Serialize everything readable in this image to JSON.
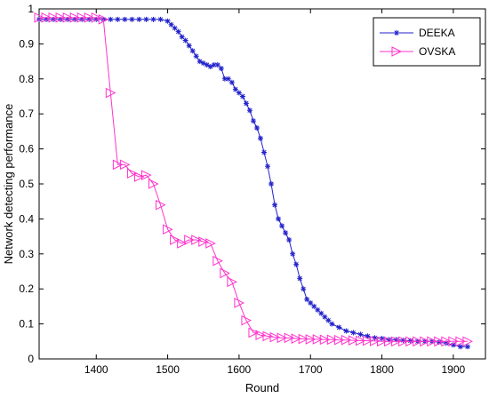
{
  "chart_data": {
    "type": "line",
    "xlabel": "Round",
    "ylabel": "Network detecting performance",
    "xlim": [
      1320,
      1945
    ],
    "ylim": [
      0,
      1
    ],
    "xticks": [
      "1400",
      "1500",
      "1600",
      "1700",
      "1800",
      "1900"
    ],
    "yticks": [
      "0",
      "0.1",
      "0.2",
      "0.3",
      "0.4",
      "0.5",
      "0.6",
      "0.7",
      "0.8",
      "0.9",
      "1"
    ],
    "legend_position": "top-right",
    "series": [
      {
        "name": "DEEKA",
        "color": "#2222cc",
        "marker": "star",
        "x": [
          1320,
          1330,
          1340,
          1350,
          1360,
          1370,
          1380,
          1390,
          1400,
          1410,
          1420,
          1430,
          1440,
          1450,
          1460,
          1470,
          1480,
          1490,
          1500,
          1505,
          1510,
          1515,
          1520,
          1525,
          1530,
          1535,
          1540,
          1545,
          1550,
          1555,
          1560,
          1565,
          1570,
          1575,
          1580,
          1585,
          1590,
          1595,
          1600,
          1605,
          1610,
          1615,
          1620,
          1625,
          1630,
          1635,
          1640,
          1645,
          1650,
          1655,
          1660,
          1665,
          1670,
          1675,
          1680,
          1685,
          1690,
          1695,
          1700,
          1705,
          1710,
          1715,
          1720,
          1725,
          1730,
          1740,
          1750,
          1760,
          1770,
          1780,
          1790,
          1800,
          1810,
          1820,
          1830,
          1840,
          1850,
          1860,
          1870,
          1880,
          1890,
          1900,
          1910,
          1920
        ],
        "y": [
          0.97,
          0.97,
          0.97,
          0.97,
          0.97,
          0.97,
          0.97,
          0.97,
          0.97,
          0.97,
          0.97,
          0.97,
          0.97,
          0.97,
          0.97,
          0.97,
          0.97,
          0.97,
          0.965,
          0.955,
          0.945,
          0.935,
          0.92,
          0.91,
          0.895,
          0.88,
          0.865,
          0.85,
          0.845,
          0.84,
          0.835,
          0.84,
          0.84,
          0.83,
          0.8,
          0.8,
          0.79,
          0.77,
          0.76,
          0.75,
          0.73,
          0.71,
          0.68,
          0.66,
          0.63,
          0.59,
          0.55,
          0.5,
          0.44,
          0.4,
          0.38,
          0.36,
          0.34,
          0.3,
          0.27,
          0.23,
          0.2,
          0.17,
          0.16,
          0.15,
          0.14,
          0.13,
          0.12,
          0.11,
          0.1,
          0.09,
          0.08,
          0.075,
          0.07,
          0.065,
          0.06,
          0.058,
          0.055,
          0.055,
          0.053,
          0.052,
          0.05,
          0.05,
          0.05,
          0.048,
          0.045,
          0.04,
          0.035,
          0.035
        ]
      },
      {
        "name": "OVSKA",
        "color": "#ff33cc",
        "marker": "triangle-right",
        "x": [
          1320,
          1330,
          1340,
          1350,
          1360,
          1370,
          1380,
          1390,
          1400,
          1410,
          1420,
          1430,
          1440,
          1450,
          1460,
          1470,
          1480,
          1490,
          1500,
          1510,
          1520,
          1530,
          1540,
          1550,
          1560,
          1570,
          1580,
          1590,
          1600,
          1610,
          1620,
          1630,
          1640,
          1650,
          1660,
          1670,
          1680,
          1690,
          1700,
          1710,
          1720,
          1730,
          1740,
          1750,
          1760,
          1770,
          1780,
          1790,
          1800,
          1810,
          1820,
          1830,
          1840,
          1850,
          1860,
          1870,
          1880,
          1890,
          1900,
          1910,
          1920
        ],
        "y": [
          0.975,
          0.975,
          0.975,
          0.975,
          0.975,
          0.975,
          0.975,
          0.975,
          0.975,
          0.97,
          0.76,
          0.555,
          0.555,
          0.53,
          0.52,
          0.525,
          0.5,
          0.44,
          0.37,
          0.34,
          0.33,
          0.34,
          0.34,
          0.335,
          0.33,
          0.28,
          0.245,
          0.22,
          0.16,
          0.11,
          0.075,
          0.068,
          0.065,
          0.062,
          0.06,
          0.06,
          0.058,
          0.057,
          0.056,
          0.056,
          0.055,
          0.055,
          0.054,
          0.054,
          0.053,
          0.052,
          0.052,
          0.051,
          0.05,
          0.05,
          0.05,
          0.05,
          0.05,
          0.05,
          0.05,
          0.05,
          0.05,
          0.05,
          0.05,
          0.05,
          0.05
        ]
      }
    ]
  }
}
